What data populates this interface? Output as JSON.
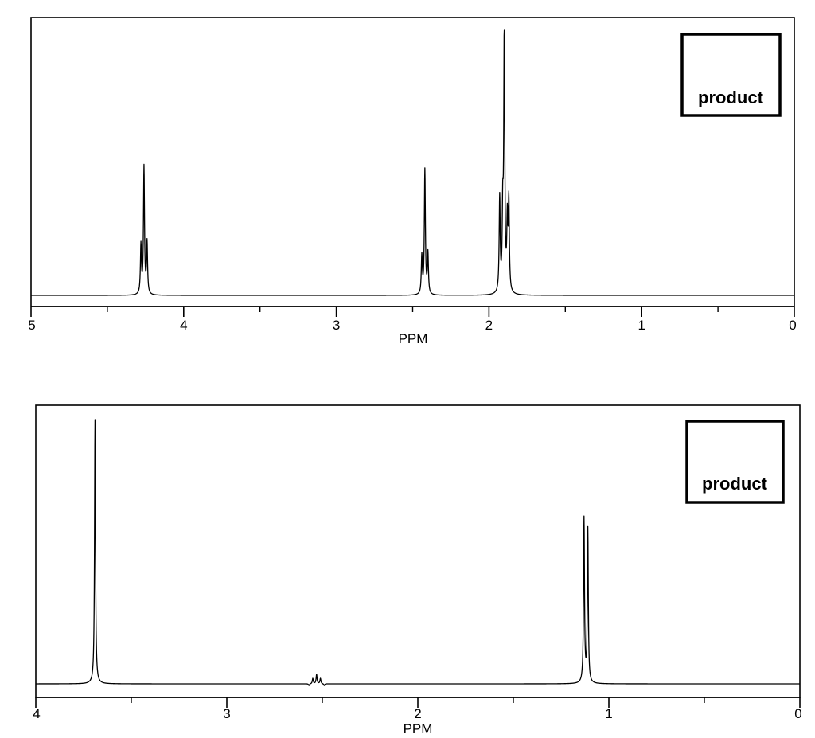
{
  "chart_data": [
    {
      "type": "line",
      "title": "",
      "xlabel": "PPM",
      "ylabel": "",
      "xlim": [
        5,
        0
      ],
      "ylim": [
        0,
        1
      ],
      "x_reversed": true,
      "grid": false,
      "annotation": "product",
      "annotation_placement": "top-right",
      "ticks_major": [
        {
          "value": 5,
          "label": "5"
        },
        {
          "value": 4,
          "label": "4"
        },
        {
          "value": 3,
          "label": "3"
        },
        {
          "value": 2,
          "label": "2"
        },
        {
          "value": 1,
          "label": "1"
        },
        {
          "value": 0,
          "label": "0"
        }
      ],
      "ticks_minor": [
        4.5,
        3.5,
        2.5,
        1.5,
        0.5
      ],
      "baseline": 0.02,
      "linewidth": 0.004,
      "peaks": [
        {
          "ppm": 4.28,
          "height": 0.2
        },
        {
          "ppm": 4.26,
          "height": 0.49
        },
        {
          "ppm": 4.24,
          "height": 0.21
        },
        {
          "ppm": 2.44,
          "height": 0.16
        },
        {
          "ppm": 2.42,
          "height": 0.48
        },
        {
          "ppm": 2.4,
          "height": 0.17
        },
        {
          "ppm": 1.93,
          "height": 0.37
        },
        {
          "ppm": 1.91,
          "height": 0.29
        },
        {
          "ppm": 1.9,
          "height": 1.0
        },
        {
          "ppm": 1.88,
          "height": 0.27
        },
        {
          "ppm": 1.87,
          "height": 0.35
        }
      ]
    },
    {
      "type": "line",
      "title": "",
      "xlabel": "PPM",
      "ylabel": "",
      "xlim": [
        4,
        0
      ],
      "ylim": [
        0,
        1
      ],
      "x_reversed": true,
      "grid": false,
      "annotation": "product",
      "annotation_placement": "top-right",
      "ticks_major": [
        {
          "value": 4,
          "label": "4"
        },
        {
          "value": 3,
          "label": "3"
        },
        {
          "value": 2,
          "label": "2"
        },
        {
          "value": 1,
          "label": "1"
        },
        {
          "value": 0,
          "label": "0"
        }
      ],
      "ticks_minor": [
        3.5,
        2.5,
        1.5,
        0.5
      ],
      "baseline": 0.02,
      "linewidth": 0.003,
      "peaks": [
        {
          "ppm": 3.69,
          "height": 1.0
        },
        {
          "ppm": 2.57,
          "height": 0.013
        },
        {
          "ppm": 2.55,
          "height": 0.04
        },
        {
          "ppm": 2.53,
          "height": 0.055
        },
        {
          "ppm": 2.51,
          "height": 0.04
        },
        {
          "ppm": 2.49,
          "height": 0.013
        },
        {
          "ppm": 1.13,
          "height": 0.63
        },
        {
          "ppm": 1.11,
          "height": 0.59
        }
      ]
    }
  ]
}
